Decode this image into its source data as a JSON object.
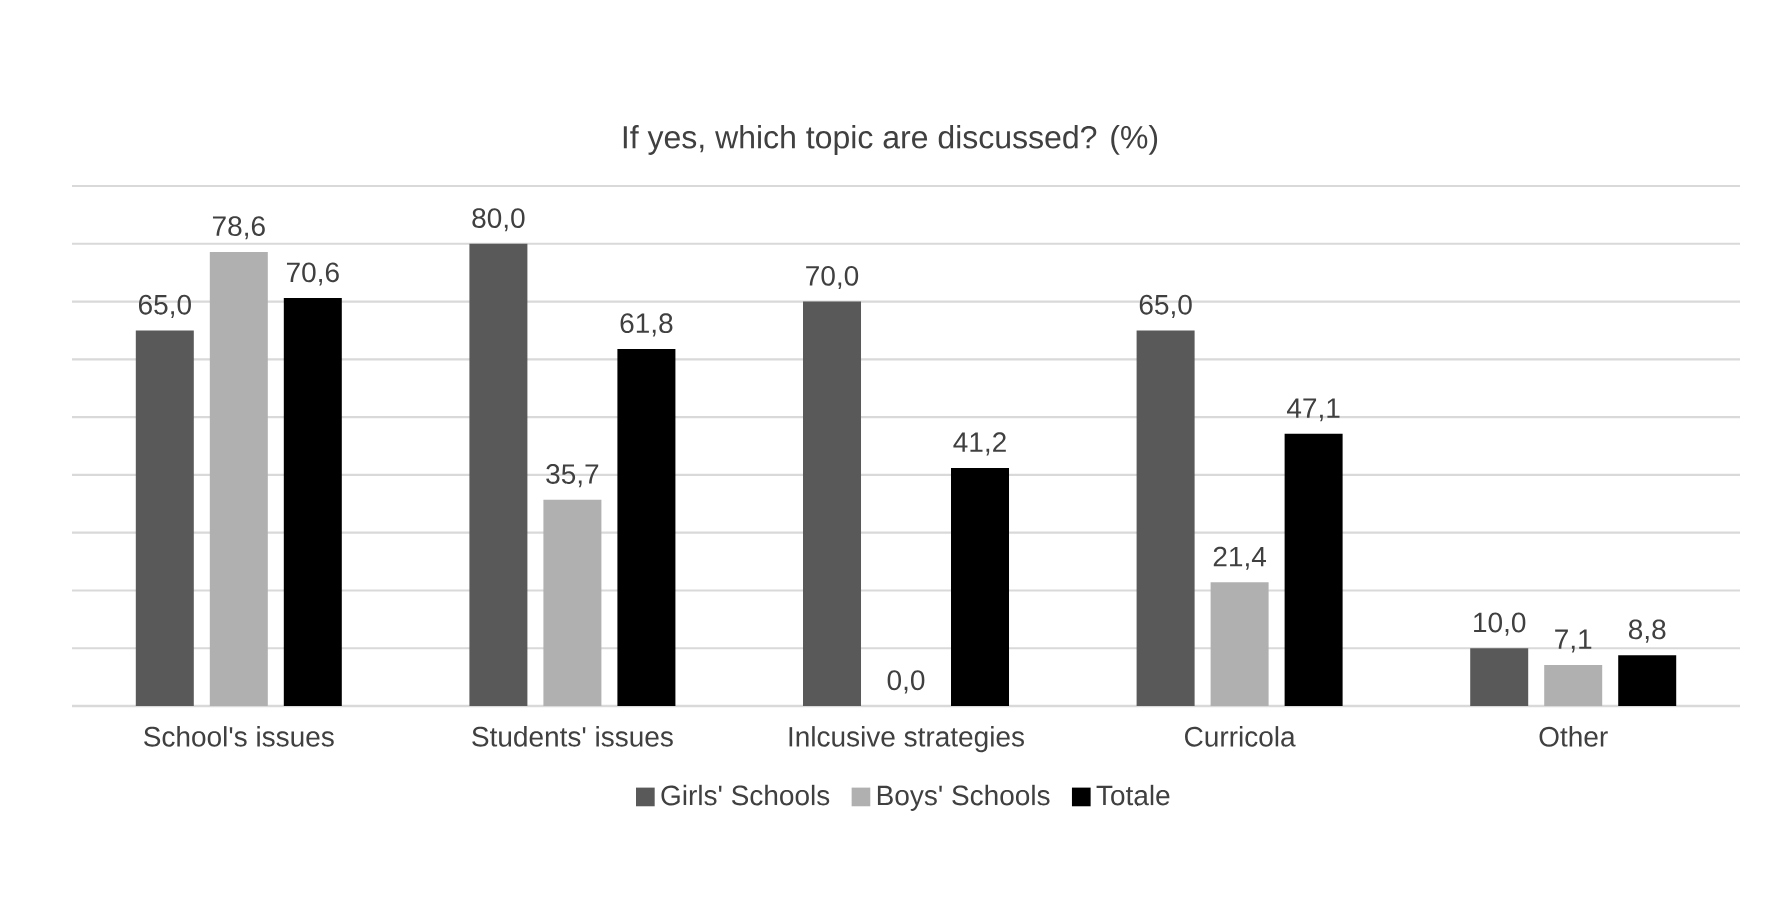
{
  "chart_data": {
    "type": "bar",
    "title": "If yes, which topic are discussed? (%)",
    "categories": [
      "School's issues",
      "Students' issues",
      "Inlcusive strategies",
      "Curricola",
      "Other"
    ],
    "series": [
      {
        "name": "Girls' Schools",
        "color": "#595959",
        "values": [
          65.0,
          80.0,
          70.0,
          65.0,
          10.0
        ],
        "value_labels": [
          "65,0",
          "80,0",
          "70,0",
          "65,0",
          "10,0"
        ]
      },
      {
        "name": "Boys' Schools",
        "color": "#b0b0b0",
        "values": [
          78.6,
          35.7,
          0.0,
          21.4,
          7.1
        ],
        "value_labels": [
          "78,6",
          "35,7",
          "0,0",
          "21,4",
          "7,1"
        ]
      },
      {
        "name": "Totale",
        "color": "#000000",
        "values": [
          70.6,
          61.8,
          41.2,
          47.1,
          8.8
        ],
        "value_labels": [
          "70,6",
          "61,8",
          "41,2",
          "47,1",
          "8,8"
        ]
      }
    ],
    "tick_labels": "x",
    "grid": "y",
    "legend": "bottom"
  }
}
